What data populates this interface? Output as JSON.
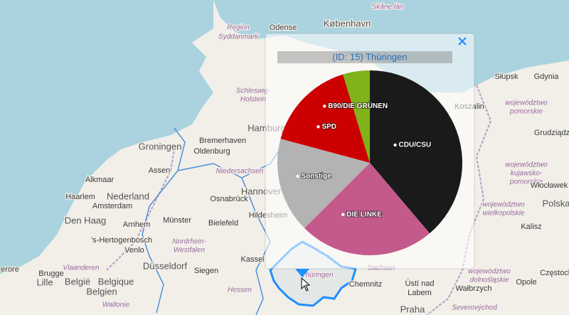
{
  "map_labels": [
    "Skåne län",
    "Odense",
    "København",
    "Region",
    "Syddanmark",
    "Schleswig-",
    "Holstein",
    "Hamburg",
    "Bremerhaven",
    "Groningen",
    "Oldenburg",
    "Assen",
    "Niedersachsen",
    "Hannover",
    "Alkmaar",
    "Nederland",
    "Haarlem",
    "Amsterdam",
    "Osnabrück",
    "Den Haag",
    "Arnhem",
    "Münster",
    "Bielefeld",
    "Hildesheim",
    "'s-Hertogenbosch",
    "Venlo",
    "Nordrhein-",
    "Westfalen",
    "Düsseldorf",
    "Siegen",
    "Kassel",
    "Vlaanderen",
    "Brugge",
    "Lille",
    "België",
    "Belgique",
    "Belgien",
    "Wallonie",
    "Hessen",
    "Chemnitz",
    "Ústí nad",
    "Labem",
    "Praha",
    "Słupsk",
    "Gdynia",
    "Koszalin",
    "województwo",
    "pomorskie",
    "Grudziądz",
    "województwo",
    "kujawsko-",
    "pomorskie",
    "Włocławek",
    "województwo",
    "wielkopolskie",
    "Polska",
    "Kalisz",
    "województwo",
    "dolnośląskie",
    "Częstoch",
    "Opole",
    "Wałbrzych",
    "Severovýchod",
    "erore",
    "Thüringen",
    "Sachsen"
  ],
  "chart_data": {
    "type": "pie",
    "title": "(ID: 15) Thüringen",
    "categories": [
      "CDU/CSU",
      "DIE LINKE",
      "Sonstige",
      "SPD",
      "B90/DIE GRÜNEN"
    ],
    "values": [
      38.8,
      23.7,
      16.7,
      16.1,
      4.7
    ],
    "colors": [
      "#1a1a1a",
      "#c45a8c",
      "#b3b3b3",
      "#cc0000",
      "#80b21a"
    ]
  }
}
